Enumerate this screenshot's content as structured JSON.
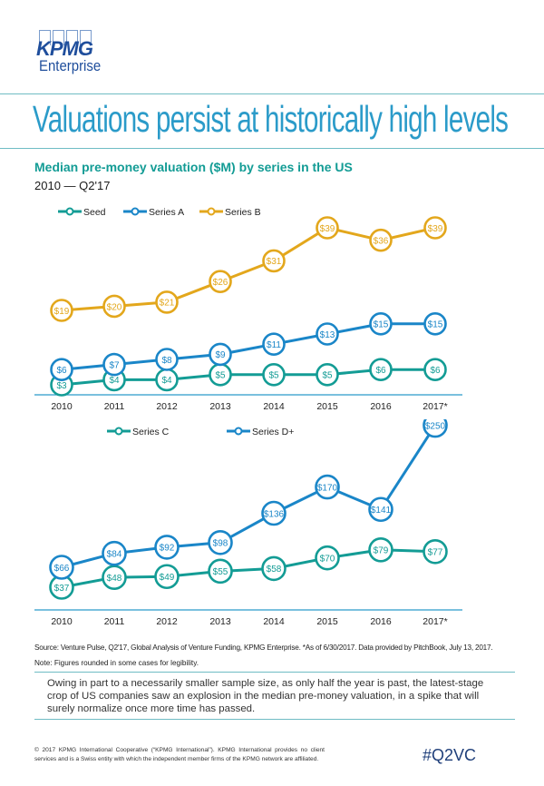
{
  "brand": {
    "name": "KPMG",
    "sub": "Enterprise"
  },
  "header": {
    "title": "Valuations persist at historically high levels",
    "subtitle": "Median pre-money valuation ($M) by series in the US",
    "date_range": "2010 — Q2'17"
  },
  "colors": {
    "seed": "#139c95",
    "seriesA": "#1a86c8",
    "seriesB": "#e3a71c",
    "seriesC": "#139c95",
    "seriesD": "#1a86c8",
    "axis": "#2b9bc9",
    "rule": "#6fbcc4"
  },
  "chart_data": [
    {
      "type": "line",
      "title": "Median pre-money valuation ($M) by series in the US",
      "subtitle": "2010 — Q2'17",
      "categories": [
        "2010",
        "2011",
        "2012",
        "2013",
        "2014",
        "2015",
        "2016",
        "2017*"
      ],
      "legend_position": "top-left",
      "grid": false,
      "ylim": [
        0,
        42
      ],
      "series": [
        {
          "name": "Seed",
          "key": "seed",
          "values": [
            3,
            4,
            4,
            5,
            5,
            5,
            6,
            6
          ],
          "labels": [
            "$3",
            "$4",
            "$4",
            "$5",
            "$5",
            "$5",
            "$6",
            "$6"
          ]
        },
        {
          "name": "Series A",
          "key": "seriesA",
          "values": [
            6,
            7,
            8,
            9,
            11,
            13,
            15,
            15
          ],
          "labels": [
            "$6",
            "$7",
            "$8",
            "$9",
            "$11",
            "$13",
            "$15",
            "$15"
          ]
        },
        {
          "name": "Series B",
          "key": "seriesB",
          "values": [
            19,
            20,
            21,
            26,
            31,
            39,
            36,
            39
          ],
          "labels": [
            "$19",
            "$20",
            "$21",
            "$26",
            "$31",
            "$39",
            "$36",
            "$39"
          ]
        }
      ]
    },
    {
      "type": "line",
      "categories": [
        "2010",
        "2011",
        "2012",
        "2013",
        "2014",
        "2015",
        "2016",
        "2017*"
      ],
      "legend_position": "top-left",
      "grid": false,
      "ylim": [
        0,
        260
      ],
      "series": [
        {
          "name": "Series C",
          "key": "seriesC",
          "values": [
            37,
            48,
            49,
            55,
            58,
            70,
            79,
            77
          ],
          "labels": [
            "$37",
            "$48",
            "$49",
            "$55",
            "$58",
            "$70",
            "$79",
            "$77"
          ]
        },
        {
          "name": "Series D+",
          "key": "seriesD",
          "values": [
            66,
            84,
            92,
            98,
            136,
            170,
            141,
            250
          ],
          "labels": [
            "$66",
            "$84",
            "$92",
            "$98",
            "$136",
            "$170",
            "$141",
            "$250"
          ]
        }
      ]
    }
  ],
  "footer": {
    "source": "Source: Venture Pulse, Q2'17, Global Analysis of Venture Funding, KPMG Enterprise. *As of 6/30/2017. Data provided by PitchBook, July 13, 2017.",
    "note": "Note: Figures rounded in some cases for legibility.",
    "commentary": "Owing in part to a necessarily smaller sample size, as only half the year is past, the latest-stage crop of US companies saw an explosion in the median pre-money valuation, in a spike that will surely normalize once more time has passed.",
    "copyright": "© 2017 KPMG International Cooperative (“KPMG International”). KPMG International provides no client services and is a Swiss entity with which the independent member firms of the KPMG network are affiliated.",
    "hashtag": "#Q2VC"
  }
}
